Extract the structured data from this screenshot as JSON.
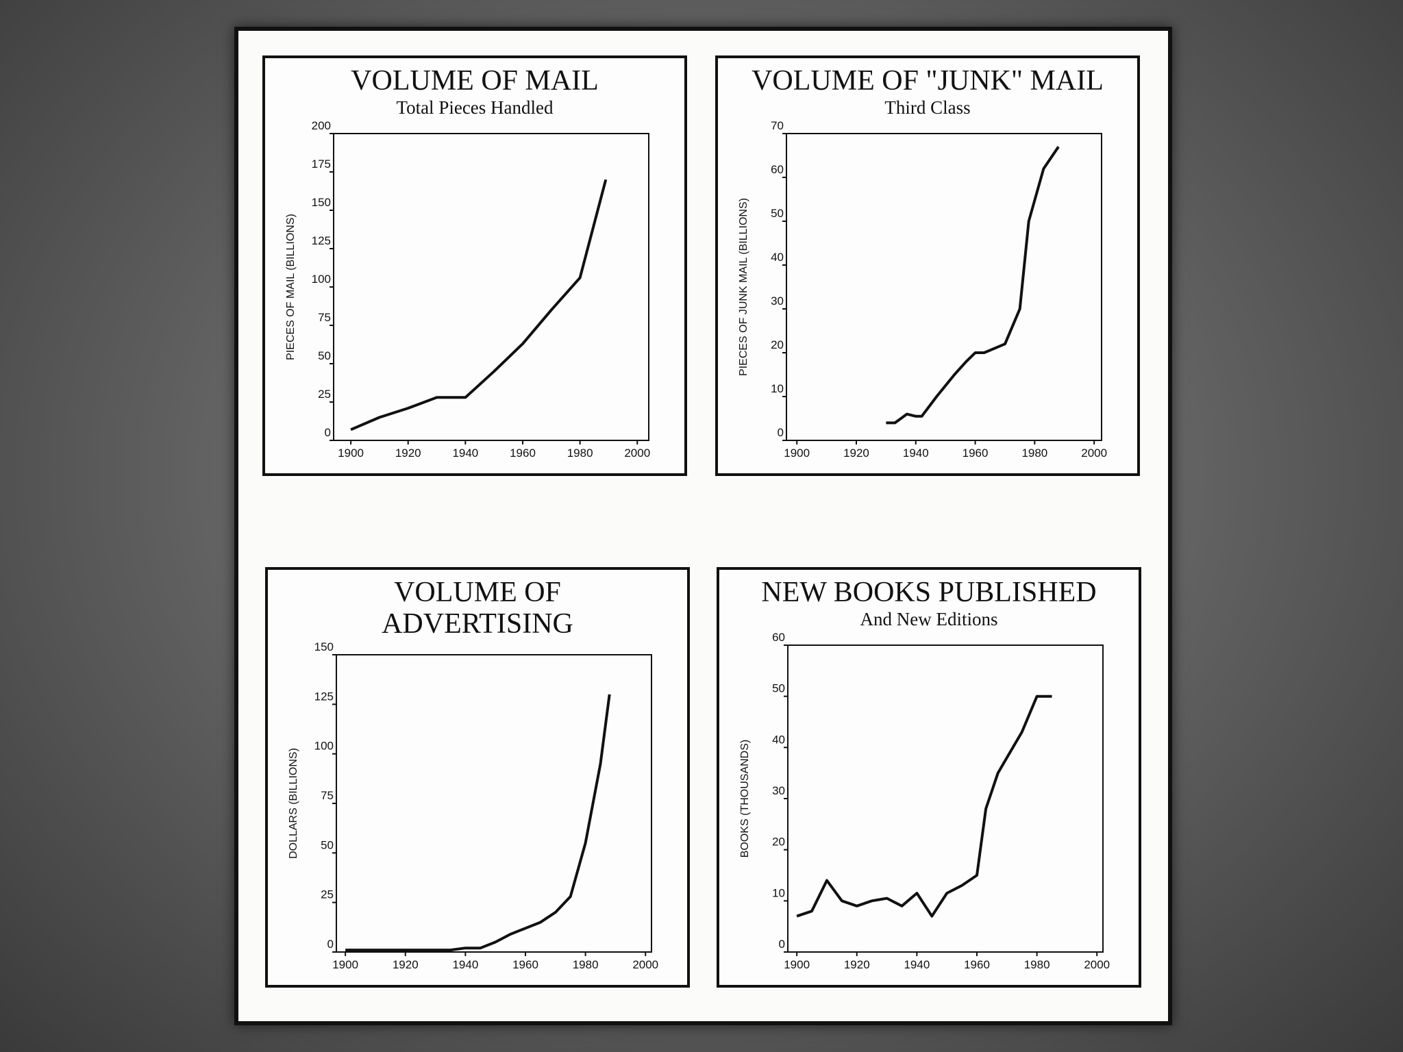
{
  "chart_data": [
    {
      "type": "line",
      "title": "VOLUME OF MAIL",
      "subtitle": "Total Pieces Handled",
      "ylabel": "PIECES OF MAIL (BILLIONS)",
      "x": [
        1900,
        1910,
        1920,
        1930,
        1940,
        1950,
        1960,
        1970,
        1980,
        1989
      ],
      "values": [
        7,
        15,
        21,
        28,
        28,
        45,
        63,
        85,
        106,
        170
      ],
      "color": "#111111",
      "xlim": [
        1894,
        2004
      ],
      "xticks": [
        1900,
        1920,
        1940,
        1960,
        1980,
        2000
      ],
      "ylim": [
        0,
        200
      ],
      "yticks": [
        0,
        25,
        50,
        75,
        100,
        125,
        150,
        175,
        200
      ]
    },
    {
      "type": "line",
      "title": "VOLUME OF \"JUNK\" MAIL",
      "subtitle": "Third Class",
      "ylabel": "PIECES OF JUNK MAIL (BILLIONS)",
      "x": [
        1930,
        1933,
        1937,
        1940,
        1942,
        1947,
        1953,
        1957,
        1960,
        1963,
        1970,
        1975,
        1978,
        1983,
        1988
      ],
      "values": [
        4,
        4,
        6,
        5.5,
        5.5,
        10,
        15,
        18,
        20,
        20,
        22,
        30,
        50,
        62,
        67
      ],
      "color": "#111111",
      "xlim": [
        1896.5,
        2002.5
      ],
      "xticks": [
        1900,
        1920,
        1940,
        1960,
        1980,
        2000
      ],
      "ylim": [
        0,
        70
      ],
      "yticks": [
        0,
        10,
        20,
        30,
        40,
        50,
        60,
        70
      ]
    },
    {
      "type": "line",
      "title": "VOLUME OF ADVERTISING",
      "ylabel": "DOLLARS (BILLIONS)",
      "x": [
        1900,
        1910,
        1920,
        1930,
        1935,
        1940,
        1945,
        1950,
        1955,
        1960,
        1965,
        1970,
        1975,
        1980,
        1985,
        1988
      ],
      "values": [
        1,
        1,
        1,
        1,
        1,
        2,
        2,
        5,
        9,
        12,
        15,
        20,
        28,
        55,
        95,
        130
      ],
      "color": "#111111",
      "xlim": [
        1897,
        2002
      ],
      "xticks": [
        1900,
        1920,
        1940,
        1960,
        1980,
        2000
      ],
      "ylim": [
        0,
        150
      ],
      "yticks": [
        0,
        25,
        50,
        75,
        100,
        125,
        150
      ]
    },
    {
      "type": "line",
      "title": "NEW BOOKS PUBLISHED",
      "subtitle": "And New Editions",
      "ylabel": "BOOKS (THOUSANDS)",
      "x": [
        1900,
        1905,
        1910,
        1915,
        1920,
        1925,
        1930,
        1935,
        1940,
        1945,
        1950,
        1955,
        1960,
        1963,
        1967,
        1970,
        1975,
        1980,
        1985
      ],
      "values": [
        7,
        8,
        14,
        10,
        9,
        10,
        10.5,
        9,
        11.5,
        7,
        11.5,
        13,
        15,
        28,
        35,
        38,
        43,
        50,
        50
      ],
      "color": "#111111",
      "xlim": [
        1897,
        2002
      ],
      "xticks": [
        1900,
        1920,
        1940,
        1960,
        1980,
        2000
      ],
      "ylim": [
        0,
        60
      ],
      "yticks": [
        0,
        10,
        20,
        30,
        40,
        50,
        60
      ]
    }
  ]
}
